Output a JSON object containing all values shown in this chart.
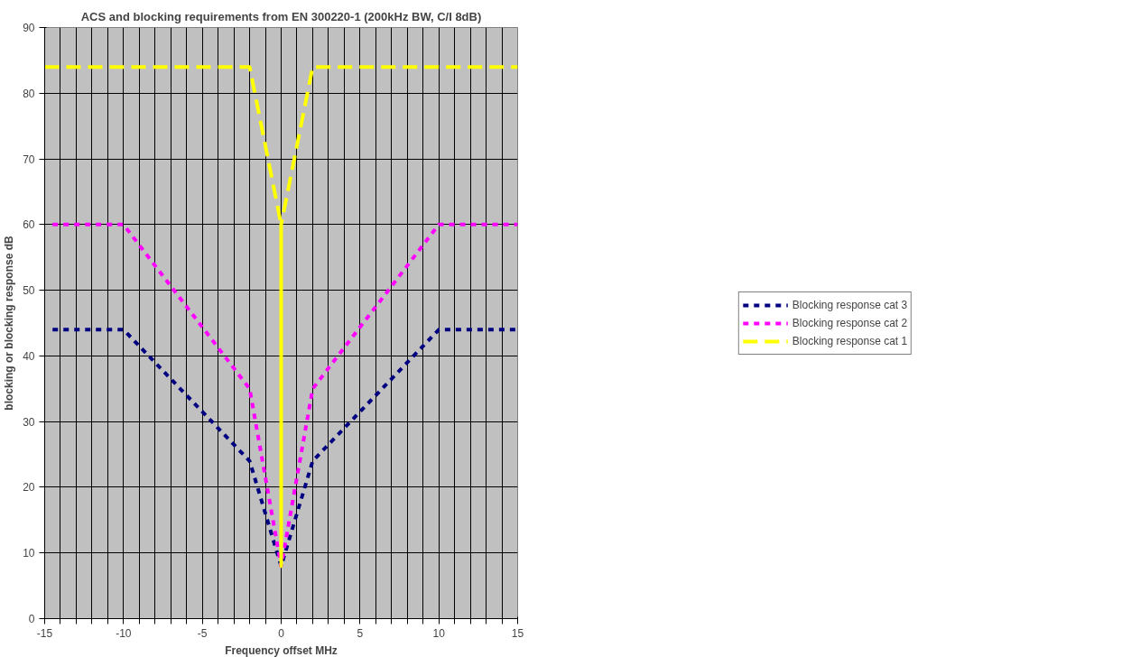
{
  "chart_data": {
    "type": "line",
    "title": "ACS and blocking requirements from EN 300220-1 (200kHz BW, C/I 8dB)",
    "xlabel": "Frequency offset MHz",
    "ylabel": "blocking or blocking response dB",
    "series": [
      {
        "name": "Blocking response cat 3",
        "color": "#000080",
        "line_style": "dotted",
        "x": [
          -14.5,
          -10,
          -2,
          0,
          2,
          10,
          15
        ],
        "values": [
          44,
          44,
          24,
          8,
          24,
          44,
          44
        ]
      },
      {
        "name": "Blocking response cat 2",
        "color": "#ff00ff",
        "line_style": "dotted",
        "x": [
          -14.5,
          -10,
          -2,
          0,
          2,
          10,
          15
        ],
        "values": [
          60,
          60,
          35,
          8,
          35,
          60,
          60
        ]
      },
      {
        "name": "Blocking response cat 1",
        "color": "#ffff00",
        "line_style": "dashed",
        "x": [
          -15,
          -2,
          0,
          0,
          0,
          2,
          15
        ],
        "values": [
          84,
          84,
          60,
          8,
          60,
          84,
          84
        ]
      }
    ],
    "xlim": [
      -15,
      15
    ],
    "xticks": [
      -15,
      {
        "value": -14,
        "label": null
      },
      {
        "value": -13,
        "label": null
      },
      {
        "value": -12,
        "label": null
      },
      {
        "value": -11,
        "label": null
      },
      -10,
      {
        "value": -9,
        "label": null
      },
      {
        "value": -8,
        "label": null
      },
      {
        "value": -7,
        "label": null
      },
      {
        "value": -6,
        "label": null
      },
      -5,
      {
        "value": -4,
        "label": null
      },
      {
        "value": -3,
        "label": null
      },
      {
        "value": -2,
        "label": null
      },
      {
        "value": -1,
        "label": null
      },
      0,
      {
        "value": 1,
        "label": null
      },
      {
        "value": 2,
        "label": null
      },
      {
        "value": 3,
        "label": null
      },
      {
        "value": 4,
        "label": null
      },
      5,
      {
        "value": 6,
        "label": null
      },
      {
        "value": 7,
        "label": null
      },
      {
        "value": 8,
        "label": null
      },
      {
        "value": 9,
        "label": null
      },
      10,
      {
        "value": 11,
        "label": null
      },
      {
        "value": 12,
        "label": null
      },
      {
        "value": 13,
        "label": null
      },
      {
        "value": 14,
        "label": null
      },
      15
    ],
    "ylim": [
      0,
      90
    ],
    "yticks": [
      0,
      10,
      20,
      30,
      40,
      50,
      60,
      70,
      80,
      90
    ],
    "grid": true,
    "legend": "right",
    "marker": "none"
  }
}
